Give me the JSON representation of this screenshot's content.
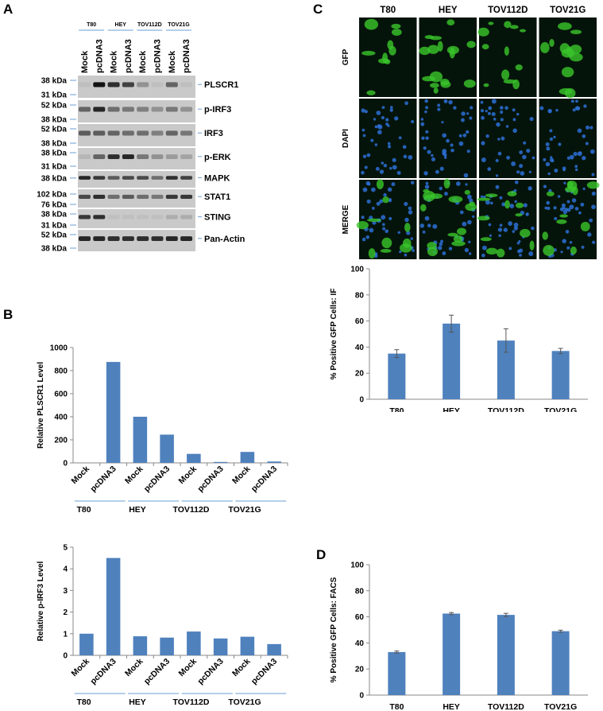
{
  "panels": {
    "a": "A",
    "b": "B",
    "c": "C",
    "d": "D"
  },
  "blot": {
    "cell_lines": [
      "T80",
      "HEY",
      "TOV112D",
      "TOV21G"
    ],
    "lanes": [
      "Mock",
      "pcDNA3",
      "Mock",
      "pcDNA3",
      "Mock",
      "pcDNA3",
      "Mock",
      "pcDNA3"
    ],
    "rows": [
      {
        "protein": "PLSCR1",
        "markers": [
          "38 kDa",
          "31 kDa"
        ],
        "intensity": [
          0.05,
          1.0,
          0.85,
          0.75,
          0.3,
          0.05,
          0.55,
          0.05
        ]
      },
      {
        "protein": "p-IRF3",
        "markers": [
          "52 kDa",
          "38 kDa"
        ],
        "intensity": [
          0.55,
          0.9,
          0.5,
          0.45,
          0.4,
          0.3,
          0.45,
          0.3
        ]
      },
      {
        "protein": "IRF3",
        "markers": [
          "52 kDa",
          "38 kDa"
        ],
        "intensity": [
          0.6,
          0.6,
          0.55,
          0.5,
          0.5,
          0.4,
          0.55,
          0.45
        ]
      },
      {
        "protein": "p-ERK",
        "markers": [
          "38 kDa",
          "31 kDa"
        ],
        "intensity": [
          0.1,
          0.55,
          0.85,
          0.9,
          0.45,
          0.3,
          0.25,
          0.2
        ]
      },
      {
        "protein": "MAPK",
        "markers": [
          "38 kDa"
        ],
        "intensity": [
          0.9,
          0.8,
          0.6,
          0.7,
          0.7,
          0.5,
          0.85,
          0.75
        ]
      },
      {
        "protein": "STAT1",
        "markers": [
          "102 kDa",
          "76 kDa"
        ],
        "intensity": [
          0.7,
          0.85,
          0.5,
          0.6,
          0.5,
          0.45,
          0.8,
          0.8
        ]
      },
      {
        "protein": "STING",
        "markers": [
          "38 kDa",
          "31 kDa"
        ],
        "intensity": [
          0.8,
          0.85,
          0.05,
          0.05,
          0.05,
          0.05,
          0.15,
          0.15
        ]
      },
      {
        "protein": "Pan-Actin",
        "markers": [
          "52 kDa",
          "38 kDa"
        ],
        "intensity": [
          0.9,
          0.9,
          0.85,
          0.85,
          0.85,
          0.85,
          0.9,
          0.9
        ]
      }
    ]
  },
  "imaging": {
    "columns": [
      "T80",
      "HEY",
      "TOV112D",
      "TOV21G"
    ],
    "rows": [
      "GFP",
      "DAPI",
      "MERGE"
    ],
    "colors": {
      "gfp": "#39c52a",
      "dapi": "#2d6fd6",
      "bg": "#05140a"
    }
  },
  "chart_data": [
    {
      "id": "B-top",
      "type": "bar",
      "ylabel": "Relative PLSCR1 Level",
      "ylim": [
        0,
        1000
      ],
      "yticks": [
        0,
        200,
        400,
        600,
        800,
        1000
      ],
      "categories": [
        "Mock",
        "pcDNA3",
        "Mock",
        "pcDNA3",
        "Mock",
        "pcDNA3",
        "Mock",
        "pcDNA3"
      ],
      "groups": [
        "T80",
        "HEY",
        "TOV112D",
        "TOV21G"
      ],
      "values": [
        0,
        875,
        400,
        245,
        78,
        8,
        95,
        12
      ],
      "color": "#4f81bd"
    },
    {
      "id": "B-bottom",
      "type": "bar",
      "ylabel": "Relative p-IRF3 Level",
      "ylim": [
        0,
        5
      ],
      "yticks": [
        0,
        1,
        2,
        3,
        4,
        5
      ],
      "categories": [
        "Mock",
        "pcDNA3",
        "Mock",
        "pcDNA3",
        "Mock",
        "pcDNA3",
        "Mock",
        "pcDNA3"
      ],
      "groups": [
        "T80",
        "HEY",
        "TOV112D",
        "TOV21G"
      ],
      "values": [
        1.0,
        4.5,
        0.88,
        0.82,
        1.1,
        0.78,
        0.86,
        0.52
      ],
      "color": "#4f81bd"
    },
    {
      "id": "C",
      "type": "bar",
      "ylabel": "% Positive GFP Cells: IF",
      "ylim": [
        0,
        100
      ],
      "yticks": [
        0,
        20,
        40,
        60,
        80,
        100
      ],
      "categories": [
        "T80",
        "HEY",
        "TOV112D",
        "TOV21G"
      ],
      "values": [
        35,
        58,
        45,
        37
      ],
      "errors": [
        3,
        6.5,
        9,
        2
      ],
      "color": "#4f81bd"
    },
    {
      "id": "D",
      "type": "bar",
      "ylabel": "% Positive GFP Cells: FACS",
      "ylim": [
        0,
        100
      ],
      "yticks": [
        0,
        20,
        40,
        60,
        80,
        100
      ],
      "categories": [
        "T80",
        "HEY",
        "TOV112D",
        "TOV21G"
      ],
      "values": [
        33,
        62.5,
        61.5,
        49
      ],
      "errors": [
        0.8,
        0.8,
        1.2,
        0.8
      ],
      "color": "#4f81bd"
    }
  ]
}
